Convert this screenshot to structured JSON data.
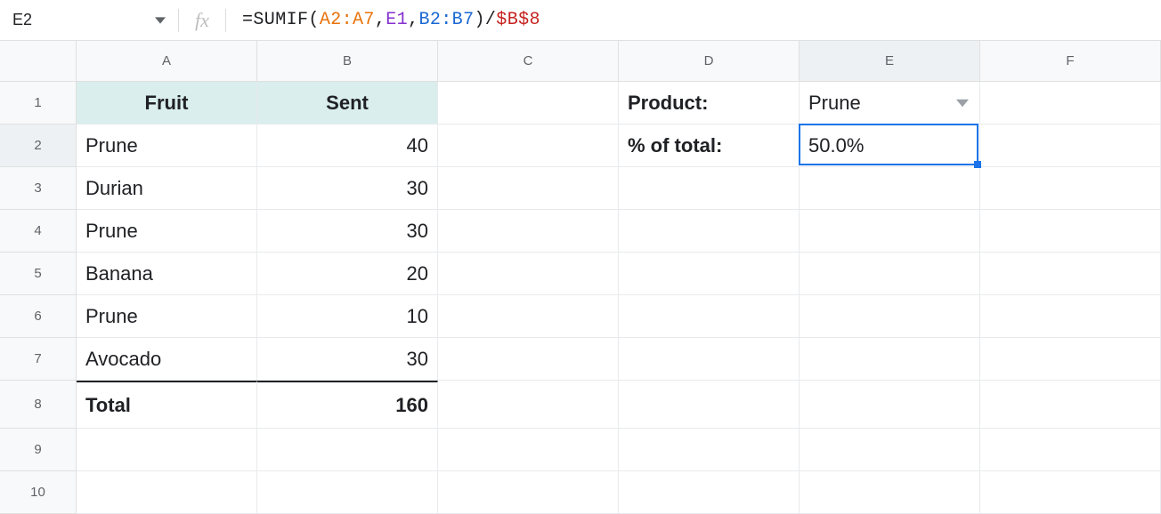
{
  "namebox": {
    "value": "E2"
  },
  "formula": {
    "eq": "=",
    "fn": "SUMIF",
    "open": "(",
    "arg1": "A2:A7",
    "comma1": ",",
    "arg2": "E1",
    "comma2": ",",
    "arg3": "B2:B7",
    "close": ")",
    "slash": "/",
    "abs": "$B$8",
    "colors": {
      "fn": "#202124",
      "punct": "#202124",
      "arg1": "#e8710a",
      "arg2": "#8430ce",
      "arg3": "#1967d2",
      "abs": "#c5221f"
    }
  },
  "layout": {
    "rowHeadWidth": 86,
    "colWidths": {
      "A": 203,
      "B": 203,
      "C": 203,
      "D": 203,
      "E": 203,
      "F": 203
    },
    "headRowH": 46,
    "rowHeights": {
      "1": 48,
      "2": 48,
      "3": 48,
      "4": 48,
      "5": 48,
      "6": 48,
      "7": 48,
      "8": 54,
      "9": 48,
      "10": 48
    }
  },
  "columns": [
    "A",
    "B",
    "C",
    "D",
    "E",
    "F"
  ],
  "rows": [
    "1",
    "2",
    "3",
    "4",
    "5",
    "6",
    "7",
    "8",
    "9",
    "10"
  ],
  "headerFill": "#d9eeed",
  "selection": {
    "col": "E",
    "row": "2"
  },
  "cells": {
    "A1": {
      "v": "Fruit",
      "cls": "header-fruit"
    },
    "B1": {
      "v": "Sent",
      "cls": "header-fruit"
    },
    "A2": {
      "v": "Prune"
    },
    "A3": {
      "v": "Durian"
    },
    "A4": {
      "v": "Prune"
    },
    "A5": {
      "v": "Banana"
    },
    "A6": {
      "v": "Prune"
    },
    "A7": {
      "v": "Avocado"
    },
    "A8": {
      "v": "Total",
      "cls": "bold totalrow"
    },
    "B2": {
      "v": "40",
      "cls": "right"
    },
    "B3": {
      "v": "30",
      "cls": "right"
    },
    "B4": {
      "v": "30",
      "cls": "right"
    },
    "B5": {
      "v": "20",
      "cls": "right"
    },
    "B6": {
      "v": "10",
      "cls": "right"
    },
    "B7": {
      "v": "30",
      "cls": "right"
    },
    "B8": {
      "v": "160",
      "cls": "right bold totalrow"
    },
    "D1": {
      "v": "Product:",
      "cls": "bold"
    },
    "D2": {
      "v": "% of total:",
      "cls": "bold"
    },
    "E1": {
      "v": "Prune",
      "dropdown": true
    },
    "E2": {
      "v": "50.0%"
    }
  }
}
